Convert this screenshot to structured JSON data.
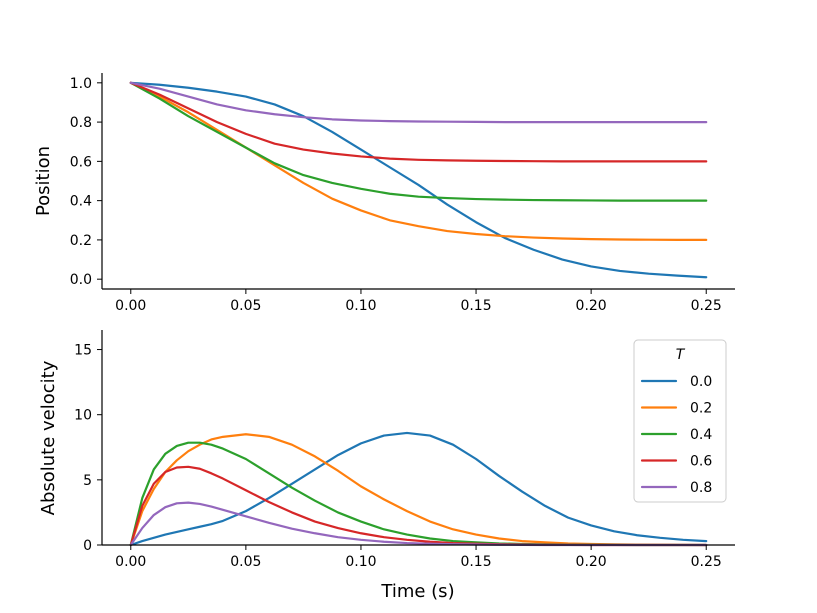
{
  "chart_data": [
    {
      "type": "line",
      "title": "",
      "xlabel": "",
      "ylabel": "Position",
      "xlim": [
        -0.0125,
        0.2625
      ],
      "ylim": [
        -0.05,
        1.05
      ],
      "xticks": [
        0.0,
        0.05,
        0.1,
        0.15,
        0.2,
        0.25
      ],
      "xtick_labels": [
        "0.00",
        "0.05",
        "0.10",
        "0.15",
        "0.20",
        "0.25"
      ],
      "yticks": [
        0.0,
        0.2,
        0.4,
        0.6,
        0.8,
        1.0
      ],
      "ytick_labels": [
        "0.0",
        "0.2",
        "0.4",
        "0.6",
        "0.8",
        "1.0"
      ],
      "grid": false,
      "legend": null,
      "x": [
        0,
        0.0125,
        0.025,
        0.0375,
        0.05,
        0.0625,
        0.075,
        0.0875,
        0.1,
        0.1125,
        0.125,
        0.1375,
        0.15,
        0.1625,
        0.175,
        0.1875,
        0.2,
        0.2125,
        0.225,
        0.2375,
        0.25
      ],
      "series": [
        {
          "name": "0.0",
          "color": "#1f77b4",
          "values": [
            1.0,
            0.99,
            0.975,
            0.955,
            0.93,
            0.89,
            0.83,
            0.75,
            0.66,
            0.57,
            0.48,
            0.38,
            0.29,
            0.21,
            0.15,
            0.1,
            0.065,
            0.042,
            0.028,
            0.018,
            0.01
          ]
        },
        {
          "name": "0.2",
          "color": "#ff7f0e",
          "values": [
            1.0,
            0.93,
            0.85,
            0.76,
            0.67,
            0.58,
            0.49,
            0.41,
            0.35,
            0.3,
            0.27,
            0.245,
            0.23,
            0.219,
            0.212,
            0.207,
            0.204,
            0.202,
            0.201,
            0.2,
            0.2
          ]
        },
        {
          "name": "0.4",
          "color": "#2ca02c",
          "values": [
            1.0,
            0.92,
            0.83,
            0.75,
            0.67,
            0.59,
            0.53,
            0.49,
            0.46,
            0.435,
            0.42,
            0.413,
            0.408,
            0.405,
            0.403,
            0.402,
            0.401,
            0.4,
            0.4,
            0.4,
            0.4
          ]
        },
        {
          "name": "0.6",
          "color": "#d62728",
          "values": [
            1.0,
            0.94,
            0.87,
            0.8,
            0.74,
            0.69,
            0.66,
            0.64,
            0.625,
            0.614,
            0.608,
            0.605,
            0.603,
            0.602,
            0.601,
            0.6,
            0.6,
            0.6,
            0.6,
            0.6,
            0.6
          ]
        },
        {
          "name": "0.8",
          "color": "#9467bd",
          "values": [
            1.0,
            0.97,
            0.93,
            0.89,
            0.86,
            0.84,
            0.825,
            0.814,
            0.808,
            0.805,
            0.803,
            0.802,
            0.801,
            0.8,
            0.8,
            0.8,
            0.8,
            0.8,
            0.8,
            0.8,
            0.8
          ]
        }
      ]
    },
    {
      "type": "line",
      "title": "",
      "xlabel": "Time (s)",
      "ylabel": "Absolute velocity",
      "xlim": [
        -0.0125,
        0.2625
      ],
      "ylim": [
        0,
        16.5
      ],
      "xticks": [
        0.0,
        0.05,
        0.1,
        0.15,
        0.2,
        0.25
      ],
      "xtick_labels": [
        "0.00",
        "0.05",
        "0.10",
        "0.15",
        "0.20",
        "0.25"
      ],
      "yticks": [
        0,
        5,
        10,
        15
      ],
      "ytick_labels": [
        "0",
        "5",
        "10",
        "15"
      ],
      "grid": false,
      "legend": {
        "title": "T",
        "position": "top-right",
        "entries": [
          "0.0",
          "0.2",
          "0.4",
          "0.6",
          "0.8"
        ]
      },
      "x": [
        0,
        0.005,
        0.01,
        0.015,
        0.02,
        0.025,
        0.03,
        0.035,
        0.04,
        0.05,
        0.06,
        0.07,
        0.08,
        0.09,
        0.1,
        0.11,
        0.12,
        0.13,
        0.14,
        0.15,
        0.16,
        0.17,
        0.18,
        0.19,
        0.2,
        0.21,
        0.22,
        0.23,
        0.24,
        0.25
      ],
      "series": [
        {
          "name": "0.0",
          "color": "#1f77b4",
          "values": [
            0,
            0.3,
            0.55,
            0.8,
            1.0,
            1.2,
            1.4,
            1.6,
            1.85,
            2.6,
            3.6,
            4.7,
            5.8,
            6.9,
            7.8,
            8.4,
            8.6,
            8.4,
            7.7,
            6.6,
            5.3,
            4.1,
            3.0,
            2.1,
            1.5,
            1.05,
            0.75,
            0.55,
            0.4,
            0.3
          ]
        },
        {
          "name": "0.2",
          "color": "#ff7f0e",
          "values": [
            0,
            2.6,
            4.3,
            5.6,
            6.5,
            7.2,
            7.7,
            8.1,
            8.3,
            8.5,
            8.3,
            7.7,
            6.8,
            5.7,
            4.5,
            3.5,
            2.6,
            1.8,
            1.2,
            0.8,
            0.5,
            0.3,
            0.2,
            0.12,
            0.08,
            0.05,
            0.03,
            0.02,
            0.01,
            0.0
          ]
        },
        {
          "name": "0.4",
          "color": "#2ca02c",
          "values": [
            0,
            3.6,
            5.8,
            7.0,
            7.6,
            7.85,
            7.85,
            7.7,
            7.4,
            6.6,
            5.5,
            4.4,
            3.4,
            2.5,
            1.8,
            1.2,
            0.8,
            0.5,
            0.3,
            0.2,
            0.12,
            0.08,
            0.05,
            0.03,
            0.02,
            0.01,
            0.0,
            0.0,
            0.0,
            0.0
          ]
        },
        {
          "name": "0.6",
          "color": "#d62728",
          "values": [
            0,
            3.0,
            4.7,
            5.6,
            5.95,
            6.0,
            5.85,
            5.5,
            5.1,
            4.2,
            3.3,
            2.5,
            1.8,
            1.3,
            0.9,
            0.6,
            0.4,
            0.25,
            0.15,
            0.1,
            0.06,
            0.04,
            0.02,
            0.01,
            0.0,
            0.0,
            0.0,
            0.0,
            0.0,
            0.0
          ]
        },
        {
          "name": "0.8",
          "color": "#9467bd",
          "values": [
            0,
            1.3,
            2.3,
            2.9,
            3.2,
            3.25,
            3.15,
            2.95,
            2.7,
            2.2,
            1.7,
            1.25,
            0.9,
            0.6,
            0.4,
            0.25,
            0.15,
            0.1,
            0.06,
            0.04,
            0.02,
            0.01,
            0.0,
            0.0,
            0.0,
            0.0,
            0.0,
            0.0,
            0.0,
            0.0
          ]
        }
      ]
    }
  ]
}
